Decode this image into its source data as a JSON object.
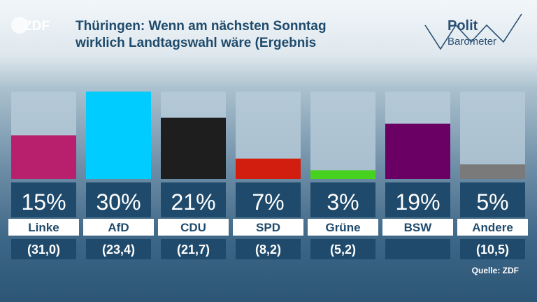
{
  "header": {
    "logo": "ZDF",
    "title": "Thüringen: Wenn am nächsten Sonntag\nwirklich Landtagswahl wäre (Ergebnis",
    "brand_line1": "Polit",
    "brand_line2": "Barometer"
  },
  "source": "Quelle: ZDF",
  "chart_data": {
    "type": "bar",
    "categories": [
      "Linke",
      "AfD",
      "CDU",
      "SPD",
      "Grüne",
      "BSW",
      "Andere"
    ],
    "values": [
      15,
      30,
      21,
      7,
      3,
      19,
      5
    ],
    "value_labels": [
      "15%",
      "30%",
      "21%",
      "7%",
      "3%",
      "19%",
      "5%"
    ],
    "previous_labels": [
      "(31,0)",
      "(23,4)",
      "(21,7)",
      "(8,2)",
      "(5,2)",
      "",
      "(10,5)"
    ],
    "colors": [
      "#b8206d",
      "#00ccff",
      "#1e1e1e",
      "#d21e0e",
      "#46d21e",
      "#6a0064",
      "#7a7a7a"
    ],
    "ylim": [
      0,
      30
    ],
    "grid": false
  }
}
